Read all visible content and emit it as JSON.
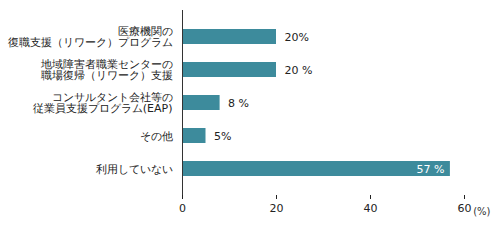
{
  "chart_data": {
    "type": "bar",
    "orientation": "horizontal",
    "categories": [
      "医療機関の\n復職支援（リワーク）プログラム",
      "地域障害者職業センターの\n職場復帰（リワーク）支援",
      "コンサルタント会社等の\n従業員支援プログラム(EAP)",
      "その他",
      "利用していない"
    ],
    "values": [
      20,
      20,
      8,
      5,
      57
    ],
    "value_labels": [
      "20%",
      "20 %",
      "8 %",
      "5%",
      "57 %"
    ],
    "data_labels": true,
    "color": "#3d8b9c",
    "xlabel": "(%)",
    "xlim": [
      0,
      60
    ],
    "xticks": [
      0,
      20,
      40,
      60
    ],
    "grid": false
  }
}
